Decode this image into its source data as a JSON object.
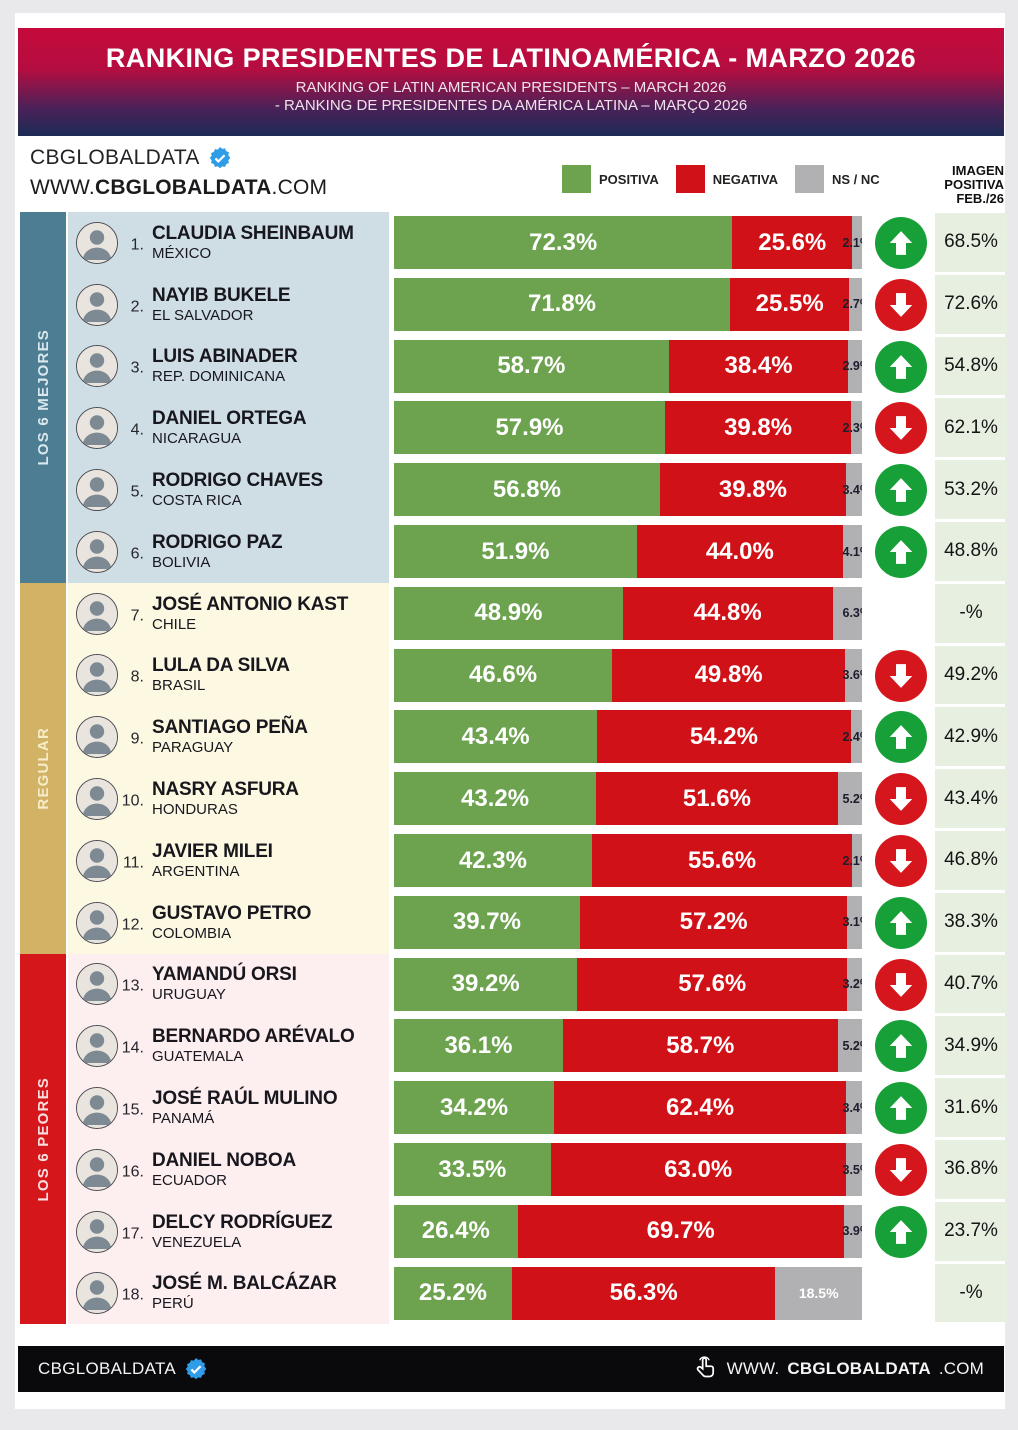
{
  "header": {
    "title": "RANKING PRESIDENTES DE LATINOAMÉRICA - MARZO 2026",
    "subtitle_en": "RANKING OF LATIN AMERICAN PRESIDENTS – MARCH 2026",
    "subtitle_pt": "- RANKING DE PRESIDENTES DA AMÉRICA LATINA – MARÇO 2026"
  },
  "brand": {
    "name": "CBGLOBALDATA",
    "url_www": "WWW.",
    "url_brand": "CBGLOBALDATA",
    "url_tld": ".COM"
  },
  "footer": {
    "brand": "CBGLOBALDATA",
    "url_www": "WWW.",
    "url_brand": "CBGLOBALDATA",
    "url_tld": ".COM"
  },
  "legend": [
    {
      "label": "POSITIVA",
      "color": "#6da24f"
    },
    {
      "label": "NEGATIVA",
      "color": "#d01117"
    },
    {
      "label": "NS / NC",
      "color": "#b1b1b3"
    }
  ],
  "prev_header": "IMAGEN\nPOSITIVA\nFEB./26",
  "colors": {
    "positive": "#6da24f",
    "negative": "#d01117",
    "nsnc": "#b1b1b3",
    "trend_up": "#18a038",
    "trend_down": "#d5161c",
    "prev_cell_bg": "#e6efe0"
  },
  "groups": [
    {
      "label": "LOS 6 MEJORES",
      "sidebar_color": "#4d7d92",
      "row_bg": "#cfdee5",
      "label_color": "#d9e7ee"
    },
    {
      "label": "REGULAR",
      "sidebar_color": "#d2b264",
      "row_bg": "#fcf8e2",
      "label_color": "#f6edc8"
    },
    {
      "label": "LOS 6 PEORES",
      "sidebar_color": "#d5161b",
      "row_bg": "#fdeef0",
      "label_color": "#f9dfe0"
    }
  ],
  "chart_data": {
    "type": "bar",
    "orientation": "horizontal-stacked",
    "title": "RANKING PRESIDENTES DE LATINOAMÉRICA - MARZO 2026",
    "series_names": [
      "POSITIVA",
      "NEGATIVA",
      "NS / NC"
    ],
    "value_range": [
      0,
      100
    ],
    "legend_position": "top",
    "rows": [
      {
        "rank": 1,
        "name": "CLAUDIA SHEINBAUM",
        "country": "MÉXICO",
        "group": 0,
        "positiva": 72.3,
        "negativa": 25.6,
        "nsnc": 2.1,
        "trend": "up",
        "prev": "68.5%"
      },
      {
        "rank": 2,
        "name": "NAYIB BUKELE",
        "country": "EL SALVADOR",
        "group": 0,
        "positiva": 71.8,
        "negativa": 25.5,
        "nsnc": 2.7,
        "trend": "down",
        "prev": "72.6%"
      },
      {
        "rank": 3,
        "name": "LUIS ABINADER",
        "country": "REP. DOMINICANA",
        "group": 0,
        "positiva": 58.7,
        "negativa": 38.4,
        "nsnc": 2.9,
        "trend": "up",
        "prev": "54.8%"
      },
      {
        "rank": 4,
        "name": "DANIEL ORTEGA",
        "country": "NICARAGUA",
        "group": 0,
        "positiva": 57.9,
        "negativa": 39.8,
        "nsnc": 2.3,
        "trend": "down",
        "prev": "62.1%"
      },
      {
        "rank": 5,
        "name": "RODRIGO CHAVES",
        "country": "COSTA RICA",
        "group": 0,
        "positiva": 56.8,
        "negativa": 39.8,
        "nsnc": 3.4,
        "trend": "up",
        "prev": "53.2%"
      },
      {
        "rank": 6,
        "name": "RODRIGO PAZ",
        "country": "BOLIVIA",
        "group": 0,
        "positiva": 51.9,
        "negativa": 44.0,
        "nsnc": 4.1,
        "trend": "up",
        "prev": "48.8%"
      },
      {
        "rank": 7,
        "name": "JOSÉ ANTONIO KAST",
        "country": "CHILE",
        "group": 1,
        "positiva": 48.9,
        "negativa": 44.8,
        "nsnc": 6.3,
        "trend": "none",
        "prev": "-%"
      },
      {
        "rank": 8,
        "name": "LULA DA SILVA",
        "country": "BRASIL",
        "group": 1,
        "positiva": 46.6,
        "negativa": 49.8,
        "nsnc": 3.6,
        "trend": "down",
        "prev": "49.2%"
      },
      {
        "rank": 9,
        "name": "SANTIAGO PEÑA",
        "country": "PARAGUAY",
        "group": 1,
        "positiva": 43.4,
        "negativa": 54.2,
        "nsnc": 2.4,
        "trend": "up",
        "prev": "42.9%"
      },
      {
        "rank": 10,
        "name": "NASRY ASFURA",
        "country": "HONDURAS",
        "group": 1,
        "positiva": 43.2,
        "negativa": 51.6,
        "nsnc": 5.2,
        "trend": "down",
        "prev": "43.4%"
      },
      {
        "rank": 11,
        "name": "JAVIER MILEI",
        "country": "ARGENTINA",
        "group": 1,
        "positiva": 42.3,
        "negativa": 55.6,
        "nsnc": 2.1,
        "trend": "down",
        "prev": "46.8%"
      },
      {
        "rank": 12,
        "name": "GUSTAVO PETRO",
        "country": "COLOMBIA",
        "group": 1,
        "positiva": 39.7,
        "negativa": 57.2,
        "nsnc": 3.1,
        "trend": "up",
        "prev": "38.3%"
      },
      {
        "rank": 13,
        "name": "YAMANDÚ ORSI",
        "country": "URUGUAY",
        "group": 2,
        "positiva": 39.2,
        "negativa": 57.6,
        "nsnc": 3.2,
        "trend": "down",
        "prev": "40.7%"
      },
      {
        "rank": 14,
        "name": "BERNARDO ARÉVALO",
        "country": "GUATEMALA",
        "group": 2,
        "positiva": 36.1,
        "negativa": 58.7,
        "nsnc": 5.2,
        "trend": "up",
        "prev": "34.9%"
      },
      {
        "rank": 15,
        "name": "JOSÉ RAÚL MULINO",
        "country": "PANAMÁ",
        "group": 2,
        "positiva": 34.2,
        "negativa": 62.4,
        "nsnc": 3.4,
        "trend": "up",
        "prev": "31.6%"
      },
      {
        "rank": 16,
        "name": "DANIEL NOBOA",
        "country": "ECUADOR",
        "group": 2,
        "positiva": 33.5,
        "negativa": 63.0,
        "nsnc": 3.5,
        "trend": "down",
        "prev": "36.8%"
      },
      {
        "rank": 17,
        "name": "DELCY RODRÍGUEZ",
        "country": "VENEZUELA",
        "group": 2,
        "positiva": 26.4,
        "negativa": 69.7,
        "nsnc": 3.9,
        "trend": "up",
        "prev": "23.7%"
      },
      {
        "rank": 18,
        "name": "JOSÉ M. BALCÁZAR",
        "country": "PERÚ",
        "group": 2,
        "positiva": 25.2,
        "negativa": 56.3,
        "nsnc": 18.5,
        "trend": "none",
        "prev": "-%"
      }
    ]
  }
}
